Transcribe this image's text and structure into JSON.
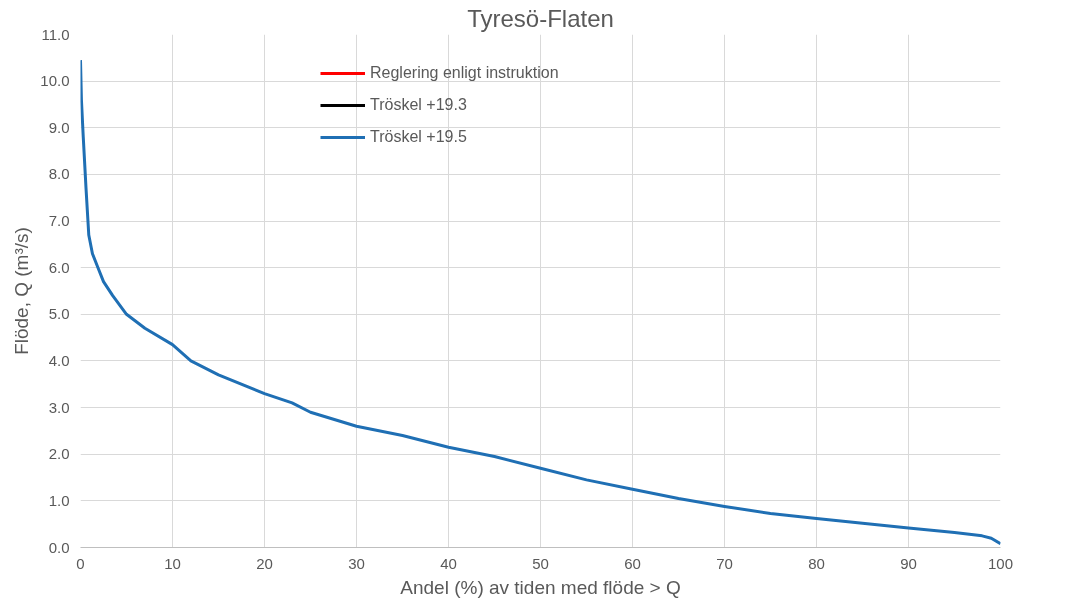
{
  "chart_data": {
    "type": "line",
    "title": "Tyresö-Flaten",
    "xlabel": "Andel (%) av tiden med flöde > Q",
    "ylabel": "Flöde, Q (m³/s)",
    "x": [
      0,
      0.1,
      0.3,
      0.6,
      0.9,
      1.3,
      1.9,
      2.5,
      3.5,
      5,
      7,
      10,
      12,
      15,
      20,
      23,
      25,
      30,
      35,
      40,
      45,
      50,
      55,
      60,
      65,
      70,
      75,
      80,
      85,
      90,
      95,
      98,
      99,
      100
    ],
    "series": [
      {
        "name": "Reglering enligt instruktion",
        "color": "#ff0000",
        "values": [
          null,
          null,
          null,
          null,
          null,
          null,
          null,
          null,
          null,
          null,
          null,
          null,
          null,
          null,
          null,
          null,
          null,
          null,
          null,
          null,
          null,
          null,
          null,
          null,
          null,
          null,
          null,
          null,
          null,
          null,
          null,
          null,
          null,
          null
        ]
      },
      {
        "name": "Tröskel +19.3",
        "color": "#000000",
        "values": [
          null,
          null,
          null,
          null,
          null,
          null,
          null,
          null,
          null,
          null,
          null,
          null,
          null,
          null,
          null,
          null,
          null,
          null,
          null,
          null,
          null,
          null,
          null,
          null,
          null,
          null,
          null,
          null,
          null,
          null,
          null,
          null,
          null,
          null
        ]
      },
      {
        "name": "Tröskel +19.5",
        "color": "#1f6fb4",
        "values": [
          10.45,
          9.6,
          8.8,
          7.7,
          6.7,
          6.3,
          6.0,
          5.7,
          5.4,
          5.0,
          4.7,
          4.35,
          4.0,
          3.7,
          3.3,
          3.1,
          2.9,
          2.6,
          2.4,
          2.15,
          1.95,
          1.7,
          1.45,
          1.25,
          1.05,
          0.88,
          0.73,
          0.62,
          0.52,
          0.42,
          0.32,
          0.25,
          0.2,
          0.08
        ]
      }
    ],
    "xlim": [
      0,
      100
    ],
    "xticks": [
      0,
      10,
      20,
      30,
      40,
      50,
      60,
      70,
      80,
      90,
      100
    ],
    "ylim": [
      0,
      11
    ],
    "yticks": [
      {
        "value": 0,
        "label": "0.0"
      },
      {
        "value": 1,
        "label": "1.0"
      },
      {
        "value": 2,
        "label": "2.0"
      },
      {
        "value": 3,
        "label": "3.0"
      },
      {
        "value": 4,
        "label": "4.0"
      },
      {
        "value": 5,
        "label": "5.0"
      },
      {
        "value": 6,
        "label": "6.0"
      },
      {
        "value": 7,
        "label": "7.0"
      },
      {
        "value": 8,
        "label": "8.0"
      },
      {
        "value": 9,
        "label": "9.0"
      },
      {
        "value": 10,
        "label": "10.0"
      },
      {
        "value": 11,
        "label": "11.0"
      }
    ],
    "grid": true,
    "legend": "top",
    "line_style": "solid",
    "marker": "none"
  }
}
